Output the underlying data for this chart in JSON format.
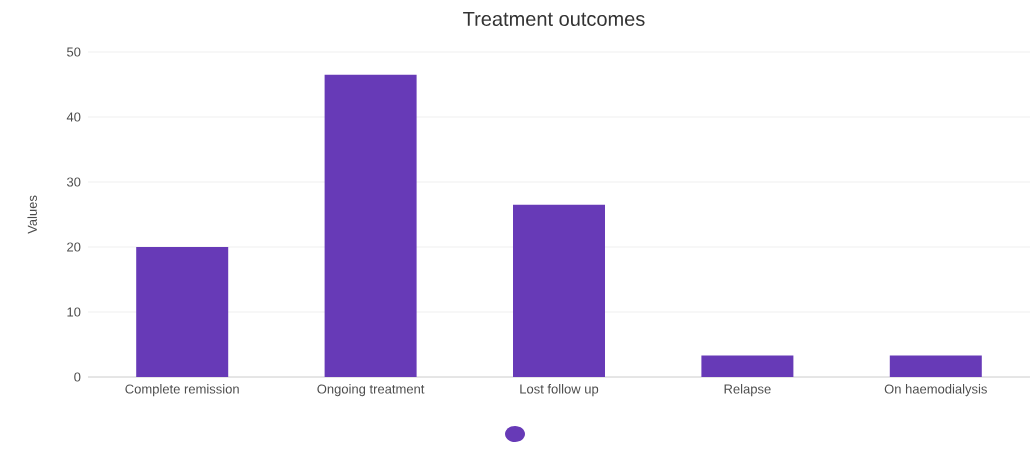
{
  "chart_data": {
    "type": "bar",
    "title": "Treatment outcomes",
    "ylabel": "Values",
    "categories": [
      "Complete remission",
      "Ongoing treatment",
      "Lost follow up",
      "Relapse",
      "On haemodialysis"
    ],
    "values": [
      20,
      46.5,
      26.5,
      3.3,
      3.3
    ],
    "color": "#673ab7",
    "ylim": [
      0,
      50
    ],
    "yticks": [
      0,
      10,
      20,
      30,
      40,
      50
    ],
    "grid": "y"
  }
}
